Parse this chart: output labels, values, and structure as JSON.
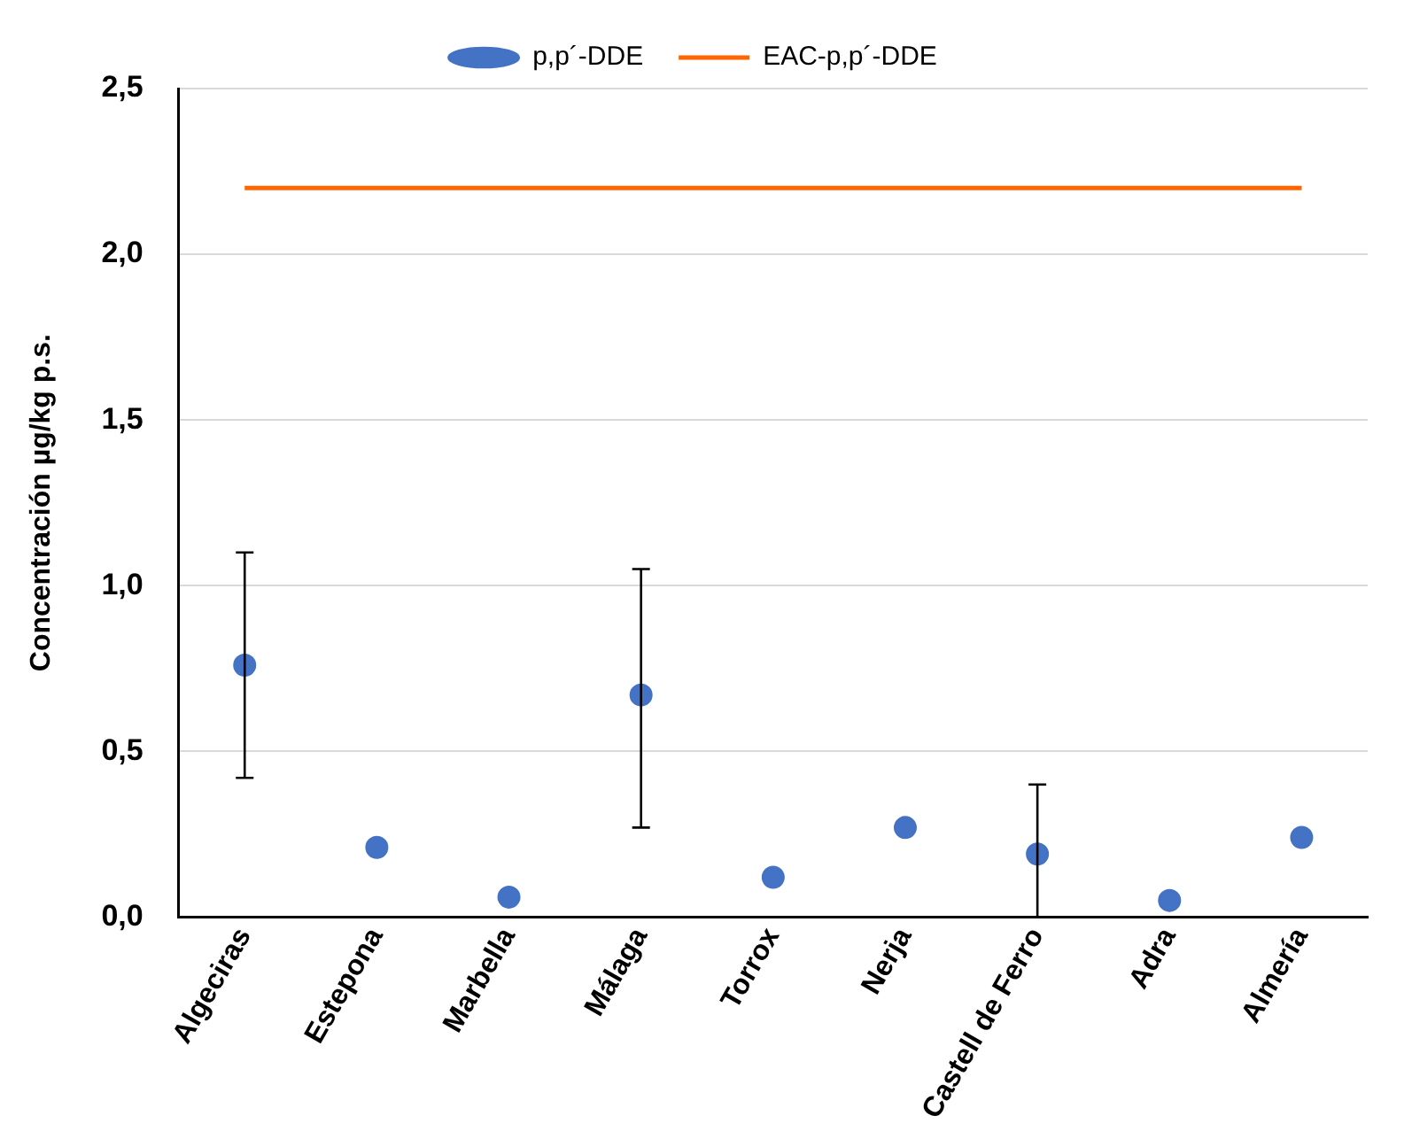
{
  "chart_data": {
    "type": "scatter",
    "ylabel": "Concentración µg/kg p.s.",
    "categories": [
      "Algeciras",
      "Estepona",
      "Marbella",
      "Málaga",
      "Torrox",
      "Nerja",
      "Castell de Ferro",
      "Adra",
      "Almería"
    ],
    "series": [
      {
        "name": "p,p´-DDE",
        "color": "#4472c4",
        "marker": "circle",
        "values": [
          0.76,
          0.21,
          0.06,
          0.67,
          0.12,
          0.27,
          0.19,
          0.05,
          0.24
        ],
        "errors": [
          [
            0.42,
            1.1
          ],
          null,
          null,
          [
            0.27,
            1.05
          ],
          null,
          null,
          [
            0,
            0.4
          ],
          null,
          null
        ]
      },
      {
        "name": "EAC-p,p´-DDE",
        "type": "line",
        "color": "#ff6600",
        "marker": "none",
        "values": [
          2.2,
          2.2,
          2.2,
          2.2,
          2.2,
          2.2,
          2.2,
          2.2,
          2.2
        ]
      }
    ],
    "ylim": [
      0,
      2.5
    ],
    "yticks": [
      {
        "value": 0,
        "label": "0,0"
      },
      {
        "value": 0.5,
        "label": "0,5"
      },
      {
        "value": 1,
        "label": "1,0"
      },
      {
        "value": 1.5,
        "label": "1,5"
      },
      {
        "value": 2,
        "label": "2,0"
      },
      {
        "value": 2.5,
        "label": "2,5"
      }
    ],
    "grid": "y",
    "legend": "top"
  }
}
